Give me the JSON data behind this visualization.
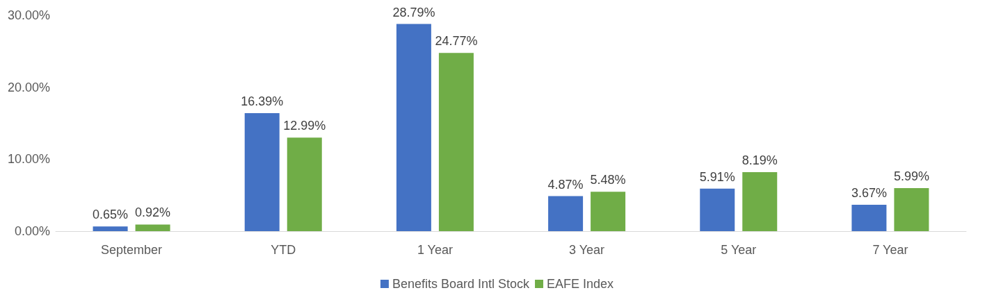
{
  "chart_data": {
    "type": "bar",
    "categories": [
      "September",
      "YTD",
      "1 Year",
      "3 Year",
      "5 Year",
      "7 Year"
    ],
    "series": [
      {
        "name": "Benefits Board Intl Stock",
        "color": "#4472c4",
        "values": [
          0.65,
          16.39,
          28.79,
          4.87,
          5.91,
          3.67
        ],
        "value_labels": [
          "0.65%",
          "16.39%",
          "28.79%",
          "4.87%",
          "5.91%",
          "3.67%"
        ]
      },
      {
        "name": "EAFE Index",
        "color": "#70ad47",
        "values": [
          0.92,
          12.99,
          24.77,
          5.48,
          8.19,
          5.99
        ],
        "value_labels": [
          "0.92%",
          "12.99%",
          "24.77%",
          "5.48%",
          "8.19%",
          "5.99%"
        ]
      }
    ],
    "ylim": [
      0,
      30
    ],
    "yticks": [
      {
        "value": 0,
        "label": "0.00%"
      },
      {
        "value": 10,
        "label": "10.00%"
      },
      {
        "value": 20,
        "label": "20.00%"
      },
      {
        "value": 30,
        "label": "30.00%"
      }
    ],
    "grid": false,
    "legend": "bottom"
  }
}
